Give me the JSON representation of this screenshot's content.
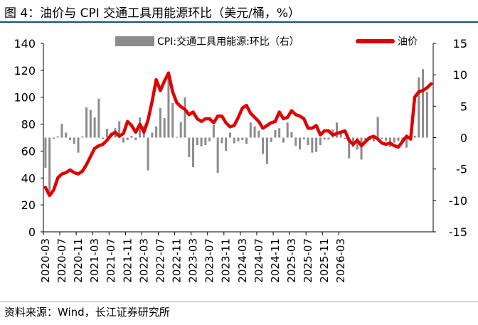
{
  "header": {
    "title": "图 4：油价与 CPI 交通工具用能源环比（美元/桶，%）"
  },
  "footer": {
    "source": "资料来源：Wind，长江证券研究所"
  },
  "chart_data": {
    "type": "bar+line",
    "legend_placement": "top",
    "grid": false,
    "x_tick_labels": [
      "2020-03",
      "2020-07",
      "2020-11",
      "2021-03",
      "2021-07",
      "2021-11",
      "2022-03",
      "2022-07",
      "2022-11",
      "2023-03",
      "2023-07",
      "2023-11",
      "2024-03",
      "2024-07",
      "2024-11",
      "2025-03",
      "2025-07",
      "2025-11",
      "2026-03"
    ],
    "y_left": {
      "ylim": [
        0,
        140
      ],
      "ticks": [
        0,
        20,
        40,
        60,
        80,
        100,
        120,
        140
      ]
    },
    "y_right": {
      "ylim": [
        -15,
        15
      ],
      "ticks": [
        -15,
        -10,
        -5,
        0,
        5,
        10,
        15
      ]
    },
    "series": [
      {
        "name": "CPI:交通工具用能源:环比（右）",
        "type": "bar",
        "axis": "right",
        "color": "#8c8c8c",
        "values": [
          -4.8,
          -8.6,
          -0.2,
          0.2,
          2.2,
          0.8,
          -0.4,
          -1.0,
          -2.4,
          0.2,
          4.8,
          4.4,
          3.2,
          6.2,
          -0.2,
          1.4,
          0.8,
          1.5,
          2.6,
          -0.8,
          -0.4,
          0.3,
          -0.4,
          3.2,
          1.9,
          -5.2,
          0.8,
          1.8,
          4.7,
          3.1,
          10.2,
          5.5,
          0.1,
          2.5,
          6.4,
          -3.1,
          -4.7,
          -1.2,
          -1.4,
          -1.2,
          -0.6,
          2.0,
          -5.6,
          -0.9,
          -2.1,
          0.8,
          -0.9,
          -0.6,
          -0.4,
          -1.0,
          2.4,
          1.8,
          1.1,
          -2.6,
          -4.2,
          -0.7,
          1.2,
          1.5,
          -0.8,
          2.4,
          0.9,
          -1.3,
          -1.9,
          -0.3,
          -1.2,
          -2.4,
          -2.3,
          -1.2,
          -0.3,
          -0.3,
          1.3,
          2.4,
          0.9,
          -0.2,
          -3.3,
          -1.5,
          -1.9,
          -3.5,
          -0.8,
          -0.4,
          -0.6,
          3.3,
          -0.2,
          -0.5,
          -1.5,
          -0.8,
          -0.5,
          -0.8,
          -1.6,
          -0.5,
          0.3,
          9.6,
          10.9,
          7.3
        ]
      },
      {
        "name": "油价",
        "type": "line",
        "axis": "left",
        "color": "#e00000",
        "values": [
          33,
          27,
          31,
          40,
          43,
          44,
          46,
          44,
          43,
          45,
          50,
          56,
          62,
          64,
          65,
          68,
          72,
          74,
          71,
          73,
          82,
          79,
          74,
          80,
          74,
          83,
          97,
          113,
          105,
          112,
          118,
          104,
          96,
          93,
          91,
          87,
          89,
          84,
          82,
          84,
          84,
          81,
          86,
          86,
          81,
          78,
          79,
          85,
          92,
          94,
          88,
          85,
          82,
          77,
          79,
          81,
          82,
          89,
          84,
          85,
          90,
          87,
          86,
          84,
          77,
          77,
          79,
          72,
          75,
          75,
          72,
          73,
          74,
          75,
          68,
          65,
          68,
          64,
          67,
          70,
          71,
          69,
          66,
          65,
          66,
          64,
          63,
          67,
          71,
          69,
          100,
          104,
          105,
          107,
          110
        ]
      }
    ]
  }
}
